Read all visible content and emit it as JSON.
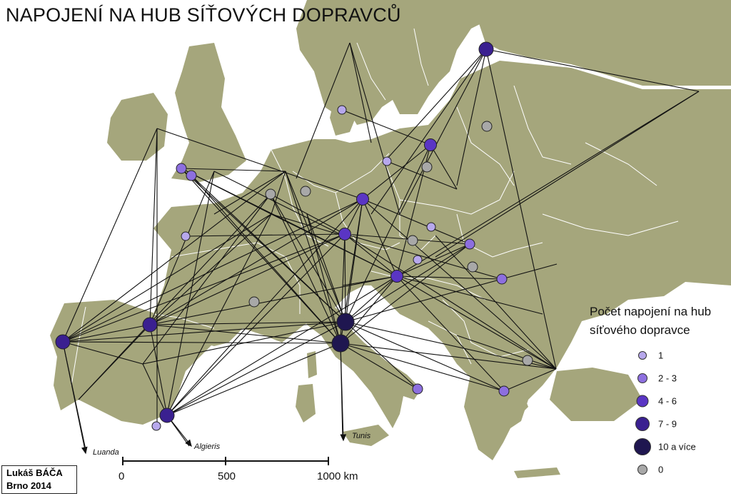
{
  "title": "NAPOJENÍ NA HUB SÍŤOVÝCH DOPRAVCŮ",
  "colors": {
    "land": "#a5a67c",
    "sea": "#ffffff",
    "border": "#ffffff",
    "route": "#111111",
    "class_1": "#b7a8ec",
    "class_2_3": "#8d6fdf",
    "class_4_6": "#5a35c4",
    "class_7_9": "#3a2090",
    "class_10_plus": "#1f1650",
    "class_0": "#a8a8a8"
  },
  "legend": {
    "title_line1": "Počet napojení na hub",
    "title_line2": "síťového dopravce",
    "items": [
      {
        "label": "1",
        "cls": "c1"
      },
      {
        "label": "2 - 3",
        "cls": "c2"
      },
      {
        "label": "4 - 6",
        "cls": "c4"
      },
      {
        "label": "7 - 9",
        "cls": "c7"
      },
      {
        "label": "10 a více",
        "cls": "c10"
      },
      {
        "label": "0",
        "cls": "c0"
      }
    ]
  },
  "scale": {
    "labels": [
      "0",
      "500",
      "1000 km"
    ]
  },
  "credit": {
    "line1": "Lukáš BÁČA",
    "line2": "Brno 2014"
  },
  "destinations": [
    {
      "label": "Luanda"
    },
    {
      "label": "Algieris"
    },
    {
      "label": "Tunis"
    }
  ]
}
